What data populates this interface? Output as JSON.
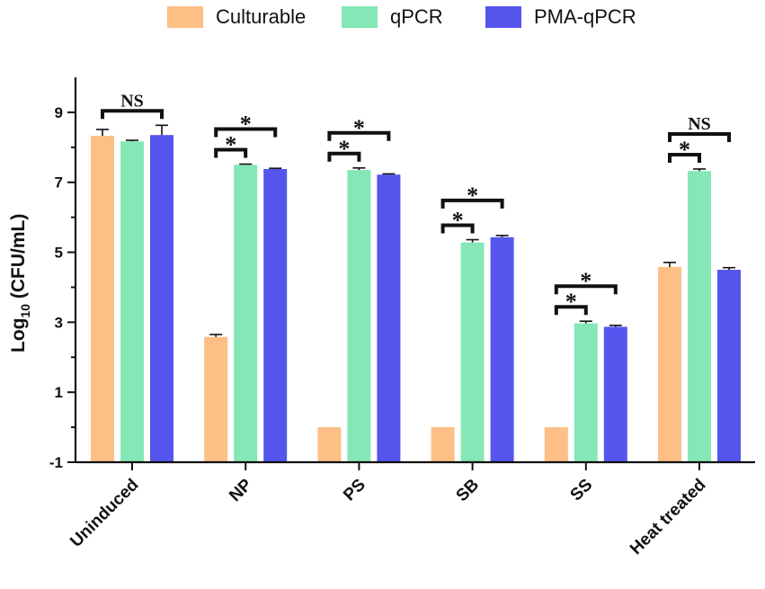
{
  "chart_data": {
    "type": "bar",
    "categories": [
      "Uninduced",
      "NP",
      "PS",
      "SB",
      "SS",
      "Heat treated"
    ],
    "series": [
      {
        "name": "Culturable",
        "color": "#FDBF85",
        "values": [
          8.33,
          2.58,
          0,
          0,
          0,
          4.58
        ],
        "errors": [
          0.18,
          0.07,
          0,
          0,
          0,
          0.13
        ]
      },
      {
        "name": "qPCR",
        "color": "#84E7B5",
        "values": [
          8.17,
          7.5,
          7.35,
          5.28,
          2.97,
          7.32
        ],
        "errors": [
          0.03,
          0.02,
          0.06,
          0.08,
          0.06,
          0.06
        ]
      },
      {
        "name": "PMA-qPCR",
        "color": "#5555EE",
        "values": [
          8.35,
          7.38,
          7.22,
          5.43,
          2.87,
          4.5
        ],
        "errors": [
          0.28,
          0.02,
          0.02,
          0.05,
          0.04,
          0.06
        ]
      }
    ],
    "ylabel_main": "Log",
    "ylabel_sub": "10",
    "ylabel_unit": " (CFU/mL)",
    "ylim": [
      -1,
      10
    ],
    "yticks": [
      -1,
      1,
      3,
      5,
      7,
      9
    ],
    "ytick_labels": [
      "-1",
      "1",
      "3",
      "5",
      "7",
      "9"
    ],
    "legend_position": "top",
    "significance": [
      {
        "category": 0,
        "from_series": 0,
        "to_series": 2,
        "label": "NS",
        "level": 0
      },
      {
        "category": 1,
        "from_series": 0,
        "to_series": 1,
        "label": "*",
        "level": 0
      },
      {
        "category": 1,
        "from_series": 0,
        "to_series": 2,
        "label": "*",
        "level": 1
      },
      {
        "category": 2,
        "from_series": 0,
        "to_series": 1,
        "label": "*",
        "level": 0
      },
      {
        "category": 2,
        "from_series": 0,
        "to_series": 2,
        "label": "*",
        "level": 1
      },
      {
        "category": 3,
        "from_series": 0,
        "to_series": 1,
        "label": "*",
        "level": 0
      },
      {
        "category": 3,
        "from_series": 0,
        "to_series": 2,
        "label": "*",
        "level": 1
      },
      {
        "category": 4,
        "from_series": 0,
        "to_series": 1,
        "label": "*",
        "level": 0
      },
      {
        "category": 4,
        "from_series": 0,
        "to_series": 2,
        "label": "*",
        "level": 1
      },
      {
        "category": 5,
        "from_series": 0,
        "to_series": 1,
        "label": "*",
        "level": 0
      },
      {
        "category": 5,
        "from_series": 0,
        "to_series": 2,
        "label": "NS",
        "level": 1
      }
    ]
  }
}
